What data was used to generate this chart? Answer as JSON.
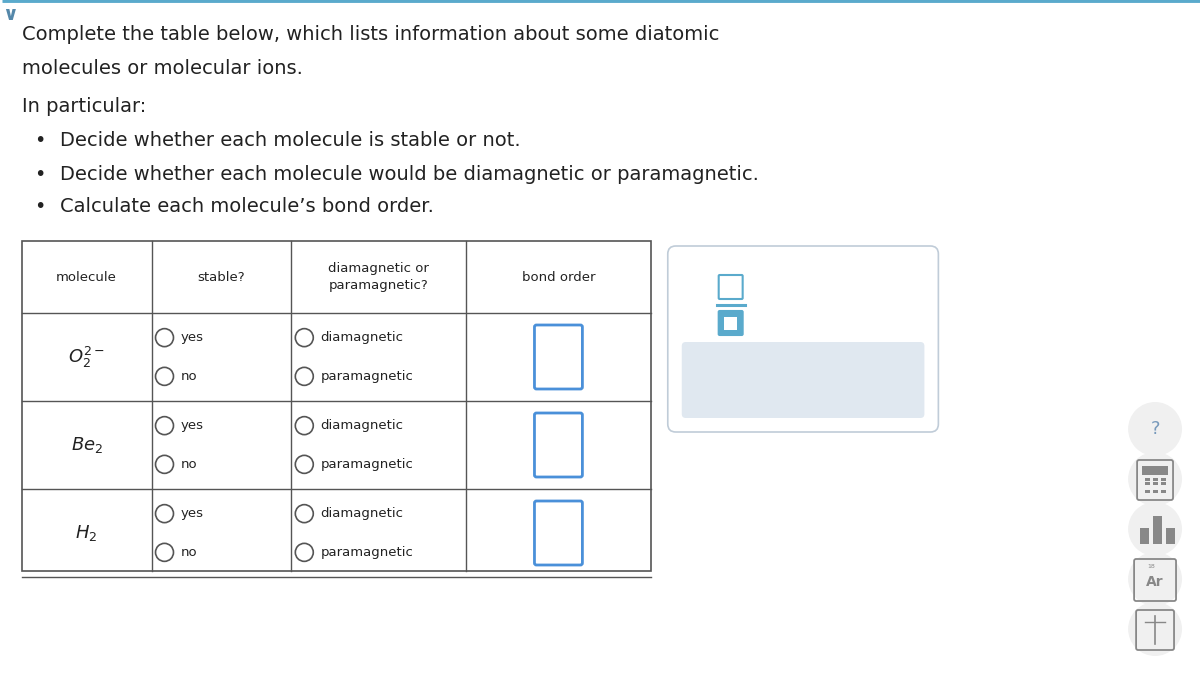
{
  "title_line1": "Complete the table below, which lists information about some diatomic",
  "title_line2": "molecules or molecular ions.",
  "subtitle": "In particular:",
  "bullets": [
    "Decide whether each molecule is stable or not.",
    "Decide whether each molecule would be diamagnetic or paramagnetic.",
    "Calculate each molecule’s bond order."
  ],
  "bg_color": "#ffffff",
  "table_header": [
    "molecule",
    "stable?",
    "diamagnetic or\nparamagnetic?",
    "bond order"
  ],
  "table_border_color": "#555555",
  "text_color": "#222222",
  "input_box_color": "#4a90d9",
  "popup_border": "#c0ccd8",
  "popup_icon_color": "#5aaacc",
  "sidebar_icon_color": "#888888",
  "sidebar_bg": "#f0f0f0"
}
